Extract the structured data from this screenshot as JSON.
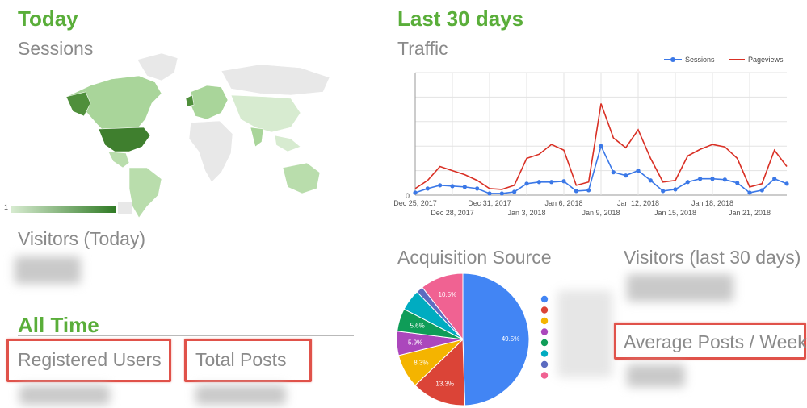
{
  "today": {
    "heading": "Today",
    "sessions_title": "Sessions",
    "map_scale_min": "1",
    "visitors_title": "Visitors (Today)"
  },
  "all_time": {
    "heading": "All Time",
    "registered_users_title": "Registered Users",
    "total_posts_title": "Total Posts"
  },
  "last30": {
    "heading": "Last 30 days",
    "traffic_title": "Traffic",
    "acquisition_title": "Acquisition Source",
    "visitors_title": "Visitors (last 30 days)",
    "avg_posts_title": "Average Posts / Week"
  },
  "colors": {
    "accent_green": "#5aae3a",
    "highlight_red": "#e0524a",
    "sessions_blue": "#3b78e7",
    "pageviews_red": "#d93025"
  },
  "chart_data": [
    {
      "type": "line",
      "title": "Traffic",
      "legend": [
        "Sessions",
        "Pageviews"
      ],
      "legend_position": "top-right",
      "x_tick_labels": [
        "Dec 25, 2017",
        "Dec 28, 2017",
        "Dec 31, 2017",
        "Jan 3, 2018",
        "Jan 6, 2018",
        "Jan 9, 2018",
        "Jan 12, 2018",
        "Jan 15, 2018",
        "Jan 18, 2018",
        "Jan 21, 2018"
      ],
      "y_tick_labels": [
        "0"
      ],
      "ylim": [
        0,
        150
      ],
      "grid": true,
      "series": [
        {
          "name": "Sessions",
          "color": "#3b78e7",
          "values": [
            3,
            8,
            12,
            11,
            10,
            8,
            2,
            2,
            4,
            14,
            16,
            16,
            17,
            5,
            6,
            60,
            28,
            24,
            30,
            18,
            5,
            7,
            16,
            20,
            20,
            19,
            15,
            3,
            6,
            20,
            14
          ]
        },
        {
          "name": "Pageviews",
          "color": "#d93025",
          "values": [
            8,
            18,
            35,
            30,
            25,
            18,
            8,
            7,
            12,
            45,
            50,
            62,
            55,
            12,
            16,
            112,
            70,
            58,
            80,
            45,
            16,
            18,
            48,
            56,
            62,
            59,
            45,
            10,
            14,
            55,
            35
          ]
        }
      ]
    },
    {
      "type": "pie",
      "title": "Acquisition Source",
      "slices": [
        {
          "value": 49.5,
          "label": "49.5%",
          "color": "#4285f4"
        },
        {
          "value": 13.3,
          "label": "13.3%",
          "color": "#db4437"
        },
        {
          "value": 8.3,
          "label": "8.3%",
          "color": "#f4b400"
        },
        {
          "value": 5.9,
          "label": "5.9%",
          "color": "#ab47bc"
        },
        {
          "value": 5.6,
          "label": "5.6%",
          "color": "#0f9d58"
        },
        {
          "value": 5.2,
          "label": "",
          "color": "#00acc1"
        },
        {
          "value": 1.7,
          "label": "",
          "color": "#5c6bc0"
        },
        {
          "value": 10.5,
          "label": "10.5%",
          "color": "#f06292"
        }
      ]
    }
  ]
}
